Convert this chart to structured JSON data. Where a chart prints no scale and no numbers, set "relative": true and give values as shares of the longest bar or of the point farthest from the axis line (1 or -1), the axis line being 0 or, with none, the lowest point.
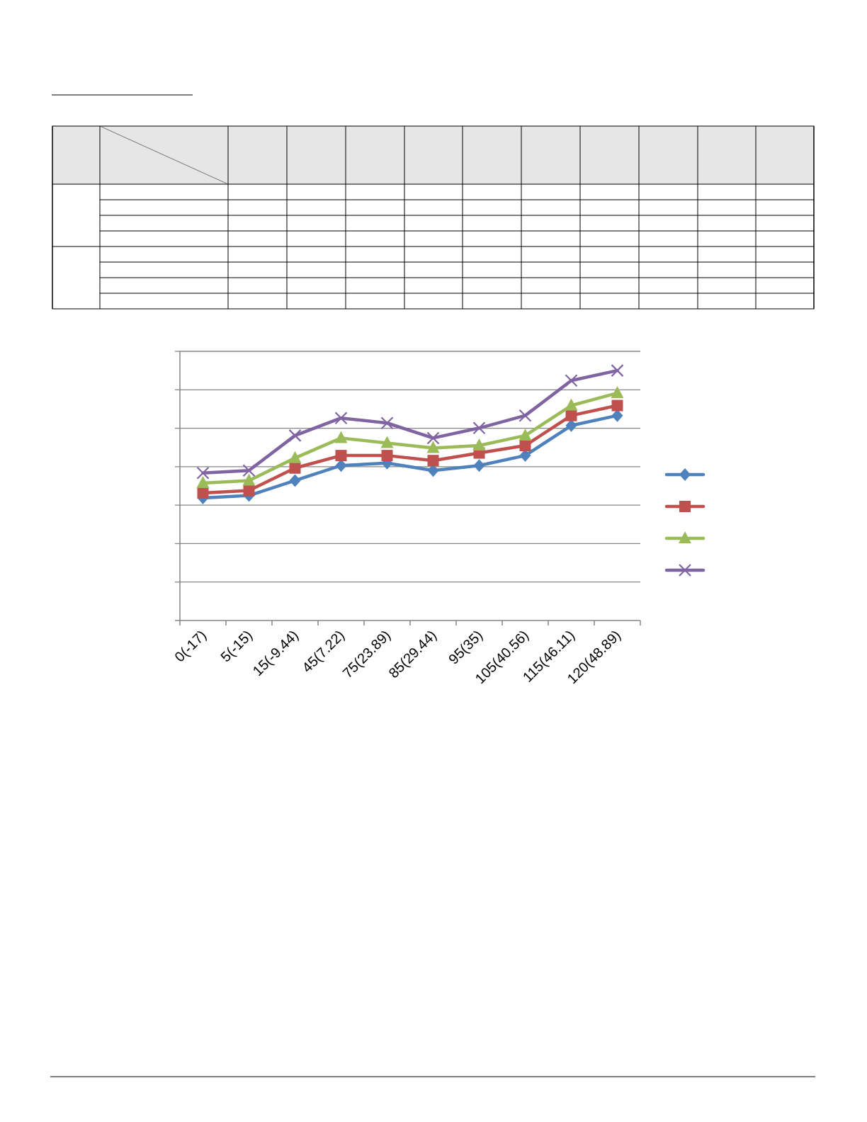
{
  "chart_data": {
    "type": "line",
    "relative": true,
    "grid": "y",
    "categories": [
      "0(-17)",
      "5(-15)",
      "15(-9.44)",
      "45(7.22)",
      "75(23.89)",
      "85(29.44)",
      "95(35)",
      "105(40.56)",
      "115(46.11)",
      "120(48.89)"
    ],
    "series": [
      {
        "color": "#4f81bd",
        "marker": "diamond",
        "values": [
          0.49,
          0.5,
          0.56,
          0.62,
          0.63,
          0.6,
          0.62,
          0.66,
          0.78,
          0.82
        ]
      },
      {
        "color": "#c0504d",
        "marker": "square",
        "values": [
          0.51,
          0.52,
          0.61,
          0.66,
          0.66,
          0.64,
          0.67,
          0.7,
          0.82,
          0.86
        ]
      },
      {
        "color": "#9bbb59",
        "marker": "triangle",
        "values": [
          0.55,
          0.56,
          0.65,
          0.73,
          0.71,
          0.69,
          0.7,
          0.74,
          0.86,
          0.91
        ]
      },
      {
        "color": "#8064a2",
        "marker": "cross",
        "values": [
          0.59,
          0.6,
          0.74,
          0.81,
          0.79,
          0.73,
          0.77,
          0.82,
          0.96,
          1
        ]
      }
    ]
  }
}
